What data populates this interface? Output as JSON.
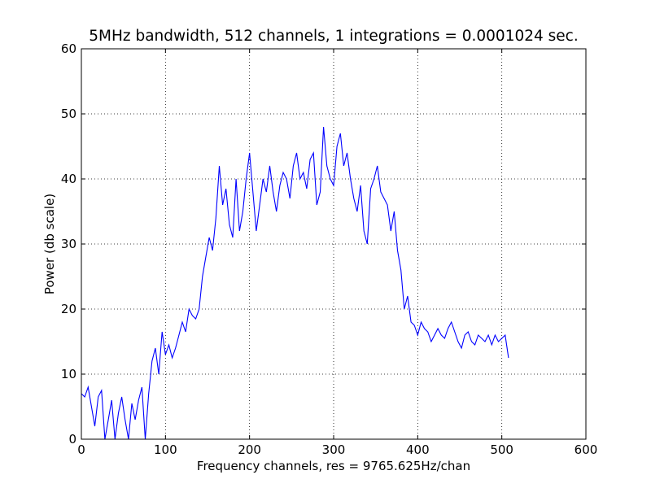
{
  "chart_data": {
    "type": "line",
    "title": "5MHz bandwidth, 512 channels, 1 integrations = 0.0001024 sec.",
    "xlabel": "Frequency channels, res = 9765.625Hz/chan",
    "ylabel": "Power (db scale)",
    "xlim": [
      0,
      600
    ],
    "ylim": [
      0,
      60
    ],
    "xticks": [
      "0",
      "100",
      "200",
      "300",
      "400",
      "500",
      "600"
    ],
    "yticks": [
      "0",
      "10",
      "20",
      "30",
      "40",
      "50",
      "60"
    ],
    "grid": true,
    "line_color": "#0000ff",
    "series": [
      {
        "x_start": 0,
        "x_step": 4,
        "values": [
          7.0,
          6.5,
          8.0,
          5.0,
          2.0,
          6.5,
          7.5,
          0.0,
          3.0,
          6.0,
          0.0,
          4.0,
          6.5,
          3.0,
          0.0,
          5.5,
          3.0,
          6.0,
          8.0,
          0.0,
          7.0,
          12.0,
          14.0,
          10.0,
          16.5,
          13.0,
          14.5,
          12.5,
          14.0,
          16.0,
          18.0,
          16.5,
          20.0,
          19.0,
          18.5,
          20.0,
          25.0,
          28.0,
          31.0,
          29.0,
          34.0,
          42.0,
          36.0,
          38.5,
          33.0,
          31.0,
          40.0,
          32.0,
          35.0,
          40.0,
          44.0,
          38.0,
          32.0,
          36.0,
          40.0,
          38.0,
          42.0,
          38.0,
          35.0,
          39.0,
          41.0,
          40.0,
          37.0,
          42.0,
          44.0,
          40.0,
          41.0,
          38.5,
          43.0,
          44.0,
          36.0,
          38.0,
          48.0,
          42.0,
          40.0,
          39.0,
          45.0,
          47.0,
          42.0,
          44.0,
          40.0,
          37.0,
          35.0,
          39.0,
          32.0,
          30.0,
          38.5,
          40.0,
          42.0,
          38.0,
          37.0,
          36.0,
          32.0,
          35.0,
          29.0,
          26.0,
          20.0,
          22.0,
          18.0,
          17.5,
          16.0,
          18.0,
          17.0,
          16.5,
          15.0,
          16.0,
          17.0,
          16.0,
          15.5,
          17.0,
          18.0,
          16.5,
          15.0,
          14.0,
          16.0,
          16.5,
          15.0,
          14.5,
          16.0,
          15.5,
          15.0,
          16.0,
          14.5,
          16.0,
          15.0,
          15.5,
          16.0,
          12.5
        ]
      }
    ]
  }
}
